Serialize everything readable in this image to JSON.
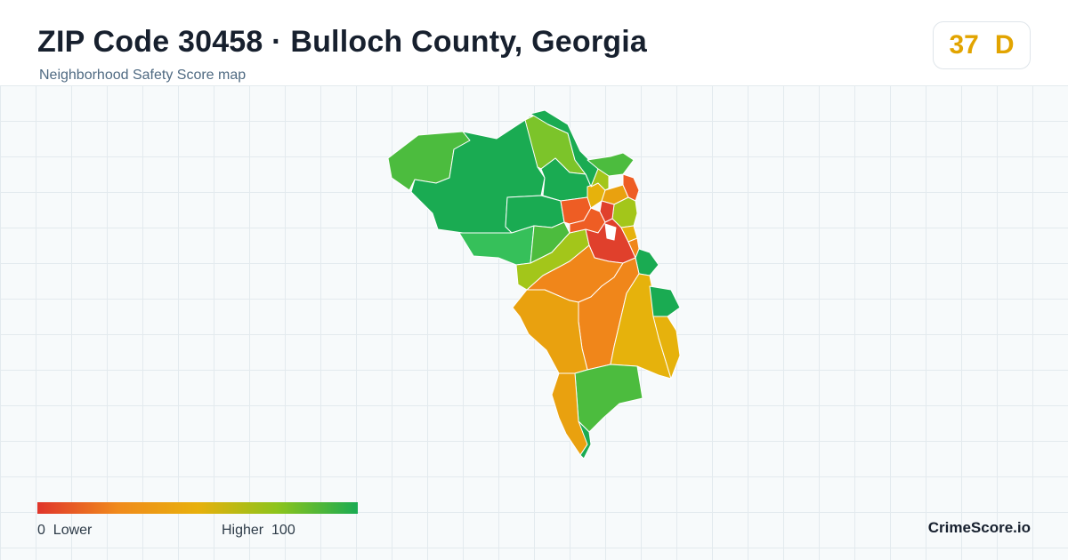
{
  "header": {
    "title": "ZIP Code 30458 · Bulloch County, Georgia",
    "subtitle": "Neighborhood Safety Score map"
  },
  "score": {
    "value": "37",
    "grade": "D",
    "color": "#e2a400"
  },
  "legend": {
    "low_value": "0",
    "low_label": "Lower",
    "high_label": "Higher",
    "high_value": "100",
    "gradient_colors": [
      "#e0352b",
      "#f08a1c",
      "#e8b00c",
      "#8cc41c",
      "#1aab52"
    ]
  },
  "brand": "CrimeScore.io",
  "palette": {
    "red": "#e0402c",
    "red_orange": "#ee5d24",
    "orange": "#f0861a",
    "amber": "#e9a10f",
    "gold": "#e6b20c",
    "yellow_green": "#a3c61a",
    "light_green": "#7cc42a",
    "green": "#4cbc3e",
    "bright_green": "#36c05a",
    "deep_green": "#1aab52"
  }
}
